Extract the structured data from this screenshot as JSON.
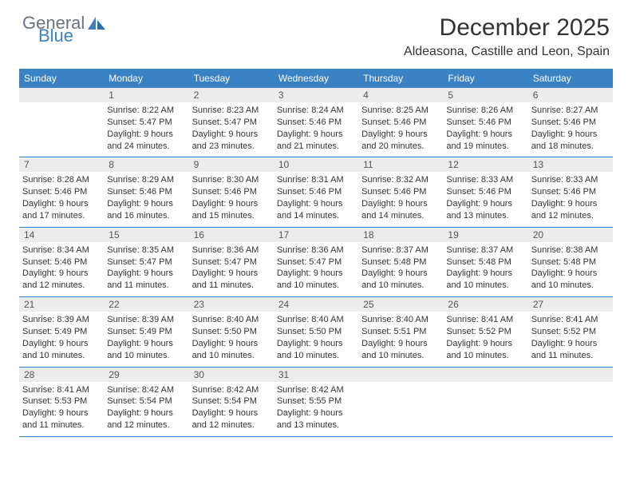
{
  "brand": {
    "part1": "General",
    "part2": "Blue"
  },
  "title": "December 2025",
  "location": "Aldeasona, Castille and Leon, Spain",
  "colors": {
    "header_bg": "#3b82c4",
    "header_text": "#ffffff",
    "daynum_bg": "#ececec",
    "text": "#333333",
    "rule": "#3b82c4"
  },
  "dayNames": [
    "Sunday",
    "Monday",
    "Tuesday",
    "Wednesday",
    "Thursday",
    "Friday",
    "Saturday"
  ],
  "weeks": [
    [
      {
        "n": "",
        "sr": "",
        "ss": "",
        "dl": ""
      },
      {
        "n": "1",
        "sr": "Sunrise: 8:22 AM",
        "ss": "Sunset: 5:47 PM",
        "dl": "Daylight: 9 hours and 24 minutes."
      },
      {
        "n": "2",
        "sr": "Sunrise: 8:23 AM",
        "ss": "Sunset: 5:47 PM",
        "dl": "Daylight: 9 hours and 23 minutes."
      },
      {
        "n": "3",
        "sr": "Sunrise: 8:24 AM",
        "ss": "Sunset: 5:46 PM",
        "dl": "Daylight: 9 hours and 21 minutes."
      },
      {
        "n": "4",
        "sr": "Sunrise: 8:25 AM",
        "ss": "Sunset: 5:46 PM",
        "dl": "Daylight: 9 hours and 20 minutes."
      },
      {
        "n": "5",
        "sr": "Sunrise: 8:26 AM",
        "ss": "Sunset: 5:46 PM",
        "dl": "Daylight: 9 hours and 19 minutes."
      },
      {
        "n": "6",
        "sr": "Sunrise: 8:27 AM",
        "ss": "Sunset: 5:46 PM",
        "dl": "Daylight: 9 hours and 18 minutes."
      }
    ],
    [
      {
        "n": "7",
        "sr": "Sunrise: 8:28 AM",
        "ss": "Sunset: 5:46 PM",
        "dl": "Daylight: 9 hours and 17 minutes."
      },
      {
        "n": "8",
        "sr": "Sunrise: 8:29 AM",
        "ss": "Sunset: 5:46 PM",
        "dl": "Daylight: 9 hours and 16 minutes."
      },
      {
        "n": "9",
        "sr": "Sunrise: 8:30 AM",
        "ss": "Sunset: 5:46 PM",
        "dl": "Daylight: 9 hours and 15 minutes."
      },
      {
        "n": "10",
        "sr": "Sunrise: 8:31 AM",
        "ss": "Sunset: 5:46 PM",
        "dl": "Daylight: 9 hours and 14 minutes."
      },
      {
        "n": "11",
        "sr": "Sunrise: 8:32 AM",
        "ss": "Sunset: 5:46 PM",
        "dl": "Daylight: 9 hours and 14 minutes."
      },
      {
        "n": "12",
        "sr": "Sunrise: 8:33 AM",
        "ss": "Sunset: 5:46 PM",
        "dl": "Daylight: 9 hours and 13 minutes."
      },
      {
        "n": "13",
        "sr": "Sunrise: 8:33 AM",
        "ss": "Sunset: 5:46 PM",
        "dl": "Daylight: 9 hours and 12 minutes."
      }
    ],
    [
      {
        "n": "14",
        "sr": "Sunrise: 8:34 AM",
        "ss": "Sunset: 5:46 PM",
        "dl": "Daylight: 9 hours and 12 minutes."
      },
      {
        "n": "15",
        "sr": "Sunrise: 8:35 AM",
        "ss": "Sunset: 5:47 PM",
        "dl": "Daylight: 9 hours and 11 minutes."
      },
      {
        "n": "16",
        "sr": "Sunrise: 8:36 AM",
        "ss": "Sunset: 5:47 PM",
        "dl": "Daylight: 9 hours and 11 minutes."
      },
      {
        "n": "17",
        "sr": "Sunrise: 8:36 AM",
        "ss": "Sunset: 5:47 PM",
        "dl": "Daylight: 9 hours and 10 minutes."
      },
      {
        "n": "18",
        "sr": "Sunrise: 8:37 AM",
        "ss": "Sunset: 5:48 PM",
        "dl": "Daylight: 9 hours and 10 minutes."
      },
      {
        "n": "19",
        "sr": "Sunrise: 8:37 AM",
        "ss": "Sunset: 5:48 PM",
        "dl": "Daylight: 9 hours and 10 minutes."
      },
      {
        "n": "20",
        "sr": "Sunrise: 8:38 AM",
        "ss": "Sunset: 5:48 PM",
        "dl": "Daylight: 9 hours and 10 minutes."
      }
    ],
    [
      {
        "n": "21",
        "sr": "Sunrise: 8:39 AM",
        "ss": "Sunset: 5:49 PM",
        "dl": "Daylight: 9 hours and 10 minutes."
      },
      {
        "n": "22",
        "sr": "Sunrise: 8:39 AM",
        "ss": "Sunset: 5:49 PM",
        "dl": "Daylight: 9 hours and 10 minutes."
      },
      {
        "n": "23",
        "sr": "Sunrise: 8:40 AM",
        "ss": "Sunset: 5:50 PM",
        "dl": "Daylight: 9 hours and 10 minutes."
      },
      {
        "n": "24",
        "sr": "Sunrise: 8:40 AM",
        "ss": "Sunset: 5:50 PM",
        "dl": "Daylight: 9 hours and 10 minutes."
      },
      {
        "n": "25",
        "sr": "Sunrise: 8:40 AM",
        "ss": "Sunset: 5:51 PM",
        "dl": "Daylight: 9 hours and 10 minutes."
      },
      {
        "n": "26",
        "sr": "Sunrise: 8:41 AM",
        "ss": "Sunset: 5:52 PM",
        "dl": "Daylight: 9 hours and 10 minutes."
      },
      {
        "n": "27",
        "sr": "Sunrise: 8:41 AM",
        "ss": "Sunset: 5:52 PM",
        "dl": "Daylight: 9 hours and 11 minutes."
      }
    ],
    [
      {
        "n": "28",
        "sr": "Sunrise: 8:41 AM",
        "ss": "Sunset: 5:53 PM",
        "dl": "Daylight: 9 hours and 11 minutes."
      },
      {
        "n": "29",
        "sr": "Sunrise: 8:42 AM",
        "ss": "Sunset: 5:54 PM",
        "dl": "Daylight: 9 hours and 12 minutes."
      },
      {
        "n": "30",
        "sr": "Sunrise: 8:42 AM",
        "ss": "Sunset: 5:54 PM",
        "dl": "Daylight: 9 hours and 12 minutes."
      },
      {
        "n": "31",
        "sr": "Sunrise: 8:42 AM",
        "ss": "Sunset: 5:55 PM",
        "dl": "Daylight: 9 hours and 13 minutes."
      },
      {
        "n": "",
        "sr": "",
        "ss": "",
        "dl": ""
      },
      {
        "n": "",
        "sr": "",
        "ss": "",
        "dl": ""
      },
      {
        "n": "",
        "sr": "",
        "ss": "",
        "dl": ""
      }
    ]
  ]
}
